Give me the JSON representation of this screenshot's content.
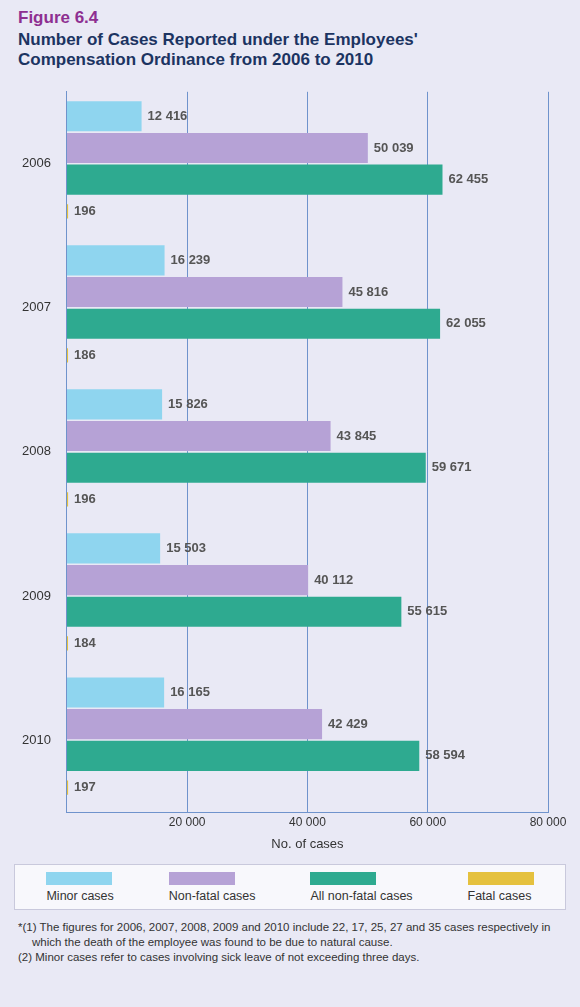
{
  "chart_data": {
    "type": "bar",
    "figure_label": "Figure 6.4",
    "title": "Number of Cases Reported under the Employees' Compensation Ordinance from 2006 to 2010",
    "orientation": "horizontal",
    "categories": [
      "2006",
      "2007",
      "2008",
      "2009",
      "2010"
    ],
    "series": [
      {
        "name": "Minor cases",
        "color": "#8fd5ef",
        "values": [
          12416,
          16239,
          15826,
          15503,
          16165
        ],
        "value_labels": [
          "12 416",
          "16 239",
          "15 826",
          "15 503",
          "16 165"
        ]
      },
      {
        "name": "Non-fatal cases",
        "color": "#b6a2d6",
        "values": [
          50039,
          45816,
          43845,
          40112,
          42429
        ],
        "value_labels": [
          "50 039",
          "45 816",
          "43 845",
          "40 112",
          "42 429"
        ]
      },
      {
        "name": "All non-fatal cases",
        "color": "#2eaa90",
        "values": [
          62455,
          62055,
          59671,
          55615,
          58594
        ],
        "value_labels": [
          "62 455",
          "62 055",
          "59 671",
          "55 615",
          "58 594"
        ]
      },
      {
        "name": "Fatal cases",
        "color": "#e5c13e",
        "values": [
          196,
          186,
          196,
          184,
          197
        ]
      }
    ],
    "xlabel": "No. of cases",
    "xlim": [
      0,
      80000
    ],
    "xticks": [
      {
        "value": 20000,
        "label": "20 000"
      },
      {
        "value": 40000,
        "label": "40 000"
      },
      {
        "value": 60000,
        "label": "60 000"
      },
      {
        "value": 80000,
        "label": "80 000"
      }
    ],
    "grid": true,
    "data_labels": true,
    "legend": "bottom",
    "footnotes": [
      "*(1) The figures for 2006, 2007, 2008, 2009 and 2010 include 22, 17, 25, 27 and 35 cases respectively in which the death of the employee was found to be due to natural cause.",
      "(2) Minor cases refer to cases involving sick leave of not exceeding three days."
    ]
  }
}
